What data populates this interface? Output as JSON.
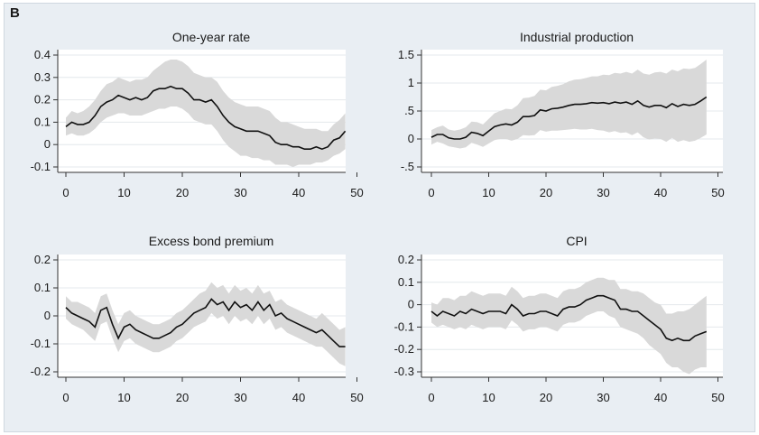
{
  "figure": {
    "panel_label": "B"
  },
  "chart_data": [
    {
      "type": "line",
      "title": "One-year rate",
      "xlim": [
        0,
        50
      ],
      "ylim": [
        -0.1,
        0.4
      ],
      "xticks": [
        "0",
        "10",
        "20",
        "30",
        "40",
        "50"
      ],
      "yticks": [
        "-0.1",
        "0",
        "0.1",
        "0.2",
        "0.3",
        "0.4"
      ],
      "grid": true,
      "x": [
        0,
        1,
        2,
        3,
        4,
        5,
        6,
        7,
        8,
        9,
        10,
        11,
        12,
        13,
        14,
        15,
        16,
        17,
        18,
        19,
        20,
        21,
        22,
        23,
        24,
        25,
        26,
        27,
        28,
        29,
        30,
        31,
        32,
        33,
        34,
        35,
        36,
        37,
        38,
        39,
        40,
        41,
        42,
        43,
        44,
        45,
        46,
        47,
        48
      ],
      "series": [
        {
          "role": "estimate",
          "values": [
            0.08,
            0.1,
            0.09,
            0.09,
            0.1,
            0.13,
            0.17,
            0.19,
            0.2,
            0.22,
            0.21,
            0.2,
            0.21,
            0.2,
            0.21,
            0.24,
            0.25,
            0.25,
            0.26,
            0.25,
            0.25,
            0.23,
            0.2,
            0.2,
            0.19,
            0.2,
            0.17,
            0.13,
            0.1,
            0.08,
            0.07,
            0.06,
            0.06,
            0.06,
            0.05,
            0.04,
            0.01,
            0.0,
            0.0,
            -0.01,
            -0.01,
            -0.02,
            -0.02,
            -0.01,
            -0.02,
            -0.01,
            0.02,
            0.03,
            0.06
          ]
        },
        {
          "role": "lower",
          "values": [
            0.04,
            0.05,
            0.04,
            0.04,
            0.05,
            0.07,
            0.1,
            0.12,
            0.13,
            0.14,
            0.14,
            0.13,
            0.13,
            0.13,
            0.14,
            0.15,
            0.16,
            0.16,
            0.17,
            0.17,
            0.16,
            0.14,
            0.11,
            0.1,
            0.09,
            0.09,
            0.06,
            0.02,
            -0.01,
            -0.03,
            -0.05,
            -0.05,
            -0.06,
            -0.06,
            -0.07,
            -0.07,
            -0.09,
            -0.09,
            -0.09,
            -0.1,
            -0.09,
            -0.09,
            -0.09,
            -0.08,
            -0.08,
            -0.07,
            -0.05,
            -0.04,
            -0.02
          ]
        },
        {
          "role": "upper",
          "values": [
            0.12,
            0.15,
            0.14,
            0.15,
            0.17,
            0.2,
            0.24,
            0.27,
            0.28,
            0.3,
            0.29,
            0.28,
            0.29,
            0.29,
            0.3,
            0.33,
            0.35,
            0.37,
            0.38,
            0.38,
            0.37,
            0.35,
            0.32,
            0.31,
            0.3,
            0.3,
            0.28,
            0.24,
            0.21,
            0.19,
            0.18,
            0.17,
            0.17,
            0.17,
            0.16,
            0.15,
            0.12,
            0.1,
            0.1,
            0.09,
            0.08,
            0.07,
            0.07,
            0.07,
            0.06,
            0.06,
            0.09,
            0.11,
            0.14
          ]
        }
      ]
    },
    {
      "type": "line",
      "title": "Industrial production",
      "xlim": [
        0,
        50
      ],
      "ylim": [
        -0.5,
        1.5
      ],
      "xticks": [
        "0",
        "10",
        "20",
        "30",
        "40",
        "50"
      ],
      "yticks": [
        "-.5",
        "0",
        ".5",
        "1",
        "1.5"
      ],
      "grid": true,
      "x": [
        0,
        1,
        2,
        3,
        4,
        5,
        6,
        7,
        8,
        9,
        10,
        11,
        12,
        13,
        14,
        15,
        16,
        17,
        18,
        19,
        20,
        21,
        22,
        23,
        24,
        25,
        26,
        27,
        28,
        29,
        30,
        31,
        32,
        33,
        34,
        35,
        36,
        37,
        38,
        39,
        40,
        41,
        42,
        43,
        44,
        45,
        46,
        47,
        48
      ],
      "series": [
        {
          "role": "estimate",
          "values": [
            0.03,
            0.08,
            0.08,
            0.02,
            0.0,
            0.0,
            0.03,
            0.12,
            0.1,
            0.06,
            0.14,
            0.22,
            0.25,
            0.27,
            0.25,
            0.3,
            0.4,
            0.4,
            0.42,
            0.52,
            0.5,
            0.54,
            0.55,
            0.57,
            0.6,
            0.62,
            0.62,
            0.63,
            0.65,
            0.64,
            0.65,
            0.63,
            0.66,
            0.64,
            0.66,
            0.62,
            0.68,
            0.6,
            0.57,
            0.6,
            0.6,
            0.56,
            0.63,
            0.58,
            0.62,
            0.6,
            0.62,
            0.68,
            0.75
          ]
        },
        {
          "role": "lower",
          "values": [
            -0.1,
            -0.05,
            -0.08,
            -0.13,
            -0.15,
            -0.17,
            -0.15,
            -0.07,
            -0.1,
            -0.14,
            -0.08,
            -0.02,
            0.0,
            0.0,
            -0.03,
            0.0,
            0.07,
            0.06,
            0.07,
            0.16,
            0.13,
            0.15,
            0.15,
            0.16,
            0.17,
            0.18,
            0.17,
            0.17,
            0.18,
            0.16,
            0.15,
            0.12,
            0.14,
            0.11,
            0.12,
            0.07,
            0.12,
            0.03,
            -0.01,
            0.01,
            0.0,
            -0.05,
            0.02,
            -0.05,
            -0.02,
            -0.05,
            -0.03,
            0.02,
            0.08
          ]
        },
        {
          "role": "upper",
          "values": [
            0.16,
            0.21,
            0.24,
            0.17,
            0.15,
            0.17,
            0.21,
            0.31,
            0.3,
            0.26,
            0.36,
            0.46,
            0.5,
            0.54,
            0.53,
            0.6,
            0.73,
            0.74,
            0.77,
            0.88,
            0.87,
            0.93,
            0.95,
            0.98,
            1.03,
            1.06,
            1.07,
            1.09,
            1.12,
            1.12,
            1.15,
            1.14,
            1.18,
            1.17,
            1.2,
            1.17,
            1.24,
            1.17,
            1.15,
            1.19,
            1.2,
            1.17,
            1.24,
            1.21,
            1.26,
            1.25,
            1.27,
            1.34,
            1.42
          ]
        }
      ]
    },
    {
      "type": "line",
      "title": "Excess bond premium",
      "xlim": [
        0,
        50
      ],
      "ylim": [
        -0.2,
        0.2
      ],
      "xticks": [
        "0",
        "10",
        "20",
        "30",
        "40",
        "50"
      ],
      "yticks": [
        "-0.2",
        "-0.1",
        "0",
        "0.1",
        "0.2"
      ],
      "grid": true,
      "x": [
        0,
        1,
        2,
        3,
        4,
        5,
        6,
        7,
        8,
        9,
        10,
        11,
        12,
        13,
        14,
        15,
        16,
        17,
        18,
        19,
        20,
        21,
        22,
        23,
        24,
        25,
        26,
        27,
        28,
        29,
        30,
        31,
        32,
        33,
        34,
        35,
        36,
        37,
        38,
        39,
        40,
        41,
        42,
        43,
        44,
        45,
        46,
        47,
        48
      ],
      "series": [
        {
          "role": "estimate",
          "values": [
            0.03,
            0.01,
            0.0,
            -0.01,
            -0.02,
            -0.04,
            0.02,
            0.03,
            -0.03,
            -0.08,
            -0.04,
            -0.03,
            -0.05,
            -0.06,
            -0.07,
            -0.08,
            -0.08,
            -0.07,
            -0.06,
            -0.04,
            -0.03,
            -0.01,
            0.01,
            0.02,
            0.03,
            0.06,
            0.04,
            0.05,
            0.02,
            0.05,
            0.03,
            0.04,
            0.02,
            0.05,
            0.02,
            0.04,
            0.0,
            0.01,
            -0.01,
            -0.02,
            -0.03,
            -0.04,
            -0.05,
            -0.06,
            -0.05,
            -0.07,
            -0.09,
            -0.11,
            -0.11
          ]
        },
        {
          "role": "lower",
          "values": [
            -0.01,
            -0.03,
            -0.04,
            -0.05,
            -0.07,
            -0.09,
            -0.03,
            -0.02,
            -0.08,
            -0.13,
            -0.09,
            -0.08,
            -0.1,
            -0.11,
            -0.12,
            -0.13,
            -0.13,
            -0.12,
            -0.11,
            -0.09,
            -0.08,
            -0.06,
            -0.04,
            -0.03,
            -0.02,
            0.01,
            -0.01,
            0.0,
            -0.03,
            0.0,
            -0.02,
            -0.01,
            -0.03,
            0.0,
            -0.03,
            -0.01,
            -0.05,
            -0.04,
            -0.06,
            -0.07,
            -0.08,
            -0.09,
            -0.1,
            -0.11,
            -0.11,
            -0.13,
            -0.15,
            -0.17,
            -0.18
          ]
        },
        {
          "role": "upper",
          "values": [
            0.07,
            0.05,
            0.05,
            0.04,
            0.03,
            0.01,
            0.07,
            0.08,
            0.02,
            -0.03,
            0.01,
            0.02,
            0.0,
            -0.01,
            -0.02,
            -0.03,
            -0.03,
            -0.02,
            -0.01,
            0.01,
            0.02,
            0.04,
            0.06,
            0.08,
            0.09,
            0.12,
            0.1,
            0.11,
            0.08,
            0.11,
            0.09,
            0.1,
            0.08,
            0.11,
            0.08,
            0.09,
            0.05,
            0.06,
            0.04,
            0.03,
            0.02,
            0.01,
            0.0,
            -0.01,
            0.01,
            -0.01,
            -0.03,
            -0.05,
            -0.04
          ]
        }
      ]
    },
    {
      "type": "line",
      "title": "CPI",
      "xlim": [
        0,
        50
      ],
      "ylim": [
        -0.3,
        0.2
      ],
      "xticks": [
        "0",
        "10",
        "20",
        "30",
        "40",
        "50"
      ],
      "yticks": [
        "-0.3",
        "-0.2",
        "-0.1",
        "0",
        "0.1",
        "0.2"
      ],
      "grid": true,
      "x": [
        0,
        1,
        2,
        3,
        4,
        5,
        6,
        7,
        8,
        9,
        10,
        11,
        12,
        13,
        14,
        15,
        16,
        17,
        18,
        19,
        20,
        21,
        22,
        23,
        24,
        25,
        26,
        27,
        28,
        29,
        30,
        31,
        32,
        33,
        34,
        35,
        36,
        37,
        38,
        39,
        40,
        41,
        42,
        43,
        44,
        45,
        46,
        47,
        48
      ],
      "series": [
        {
          "role": "estimate",
          "values": [
            -0.03,
            -0.05,
            -0.03,
            -0.04,
            -0.05,
            -0.03,
            -0.04,
            -0.02,
            -0.03,
            -0.04,
            -0.03,
            -0.03,
            -0.03,
            -0.04,
            0.0,
            -0.02,
            -0.05,
            -0.04,
            -0.04,
            -0.03,
            -0.03,
            -0.04,
            -0.05,
            -0.02,
            -0.01,
            -0.01,
            0.0,
            0.02,
            0.03,
            0.04,
            0.04,
            0.03,
            0.02,
            -0.02,
            -0.02,
            -0.03,
            -0.03,
            -0.05,
            -0.07,
            -0.09,
            -0.11,
            -0.15,
            -0.16,
            -0.15,
            -0.16,
            -0.16,
            -0.14,
            -0.13,
            -0.12
          ]
        },
        {
          "role": "lower",
          "values": [
            -0.08,
            -0.1,
            -0.09,
            -0.1,
            -0.11,
            -0.1,
            -0.11,
            -0.09,
            -0.1,
            -0.11,
            -0.1,
            -0.1,
            -0.1,
            -0.11,
            -0.07,
            -0.09,
            -0.12,
            -0.11,
            -0.11,
            -0.1,
            -0.1,
            -0.11,
            -0.12,
            -0.09,
            -0.08,
            -0.08,
            -0.07,
            -0.05,
            -0.04,
            -0.03,
            -0.03,
            -0.05,
            -0.06,
            -0.1,
            -0.11,
            -0.12,
            -0.13,
            -0.15,
            -0.18,
            -0.2,
            -0.22,
            -0.26,
            -0.28,
            -0.28,
            -0.3,
            -0.31,
            -0.29,
            -0.28,
            -0.28
          ]
        },
        {
          "role": "upper",
          "values": [
            0.01,
            0.0,
            0.03,
            0.03,
            0.02,
            0.04,
            0.04,
            0.06,
            0.05,
            0.04,
            0.05,
            0.05,
            0.05,
            0.04,
            0.08,
            0.06,
            0.03,
            0.04,
            0.04,
            0.05,
            0.05,
            0.04,
            0.03,
            0.06,
            0.07,
            0.07,
            0.08,
            0.1,
            0.11,
            0.12,
            0.12,
            0.11,
            0.11,
            0.07,
            0.07,
            0.06,
            0.06,
            0.05,
            0.03,
            0.01,
            0.0,
            -0.04,
            -0.04,
            -0.03,
            -0.03,
            -0.02,
            0.0,
            0.02,
            0.04
          ]
        }
      ]
    }
  ]
}
